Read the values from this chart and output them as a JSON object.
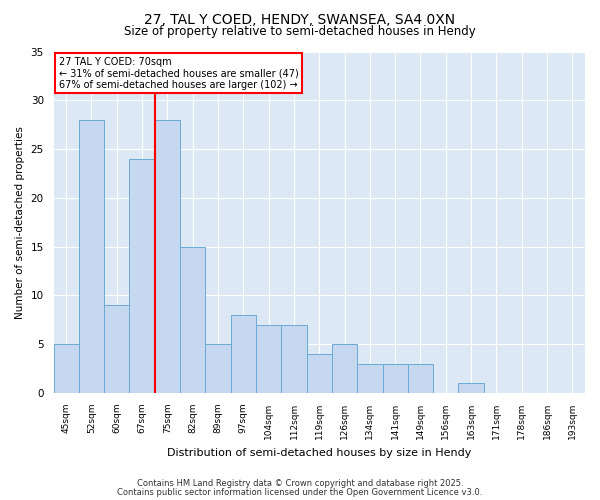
{
  "title_line1": "27, TAL Y COED, HENDY, SWANSEA, SA4 0XN",
  "title_line2": "Size of property relative to semi-detached houses in Hendy",
  "xlabel": "Distribution of semi-detached houses by size in Hendy",
  "ylabel": "Number of semi-detached properties",
  "categories": [
    "45sqm",
    "52sqm",
    "60sqm",
    "67sqm",
    "75sqm",
    "82sqm",
    "89sqm",
    "97sqm",
    "104sqm",
    "112sqm",
    "119sqm",
    "126sqm",
    "134sqm",
    "141sqm",
    "149sqm",
    "156sqm",
    "163sqm",
    "171sqm",
    "178sqm",
    "186sqm",
    "193sqm"
  ],
  "values": [
    5,
    28,
    9,
    24,
    28,
    15,
    5,
    8,
    7,
    7,
    4,
    5,
    3,
    3,
    3,
    0,
    1,
    0,
    0,
    0,
    0
  ],
  "bar_color": "#c5d8f0",
  "bar_edge_color": "#6aaad4",
  "red_line_x": 3.5,
  "annotation_title": "27 TAL Y COED: 70sqm",
  "annotation_line2": "← 31% of semi-detached houses are smaller (47)",
  "annotation_line3": "67% of semi-detached houses are larger (102) →",
  "ylim": [
    0,
    35
  ],
  "yticks": [
    0,
    5,
    10,
    15,
    20,
    25,
    30,
    35
  ],
  "plot_bg_color": "#dce9f5",
  "footer_line1": "Contains HM Land Registry data © Crown copyright and database right 2025.",
  "footer_line2": "Contains public sector information licensed under the Open Government Licence v3.0."
}
